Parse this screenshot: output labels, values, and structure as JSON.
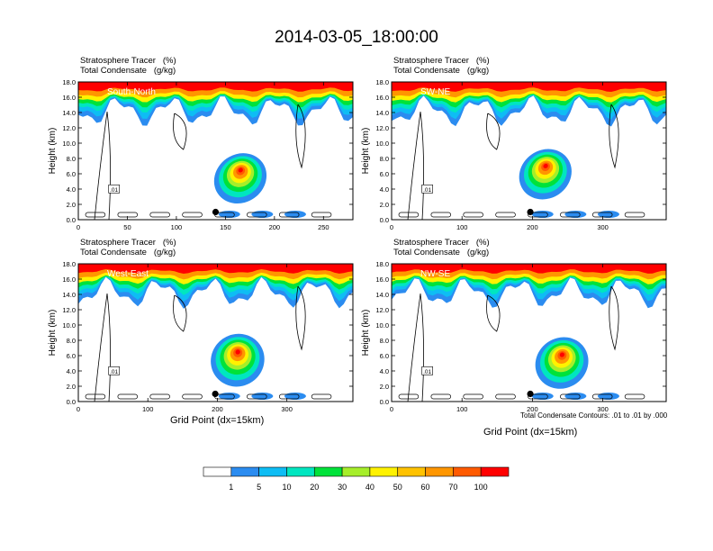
{
  "title": "2014-03-05_18:00:00",
  "panel_header": {
    "line1": "Stratosphere Tracer   (%)",
    "line2": "Total Condensate   (g/kg)"
  },
  "contour_note": "Total Condensate Contours: .01 to .01 by .000",
  "contour_label": ".01",
  "colorbar": {
    "levels": [
      1,
      5,
      10,
      20,
      30,
      40,
      50,
      60,
      70,
      100
    ],
    "colors": [
      "#ffffff",
      "#2b8cf0",
      "#0ebdf4",
      "#00e6c0",
      "#00e23a",
      "#a6ee2a",
      "#fff200",
      "#ffc200",
      "#ff9600",
      "#ff5a00",
      "#ff0000"
    ]
  },
  "chart_data": [
    {
      "type": "heatmap",
      "name": "South-North",
      "ylabel": "Height (km)",
      "xlabel": "",
      "xlim": [
        0,
        280
      ],
      "ylim": [
        0,
        18
      ],
      "xticks": [
        0,
        50,
        100,
        150,
        200,
        250
      ],
      "yticks": [
        "0.0",
        "2.0",
        "4.0",
        "6.0",
        "8.0",
        "10.0",
        "12.0",
        "14.0",
        "16.0",
        "18.0"
      ],
      "marker": {
        "x": 140,
        "y": 1.0
      }
    },
    {
      "type": "heatmap",
      "name": "SW-NE",
      "ylabel": "Height (km)",
      "xlabel": "",
      "xlim": [
        0,
        390
      ],
      "ylim": [
        0,
        18
      ],
      "xticks": [
        0,
        100,
        200,
        300
      ],
      "yticks": [
        "0.0",
        "2.0",
        "4.0",
        "6.0",
        "8.0",
        "10.0",
        "12.0",
        "14.0",
        "16.0",
        "18.0"
      ],
      "marker": {
        "x": 197,
        "y": 1.0
      }
    },
    {
      "type": "heatmap",
      "name": "West-East",
      "ylabel": "Height (km)",
      "xlabel": "Grid Point (dx=15km)",
      "xlim": [
        0,
        395
      ],
      "ylim": [
        0,
        18
      ],
      "xticks": [
        0,
        100,
        200,
        300
      ],
      "yticks": [
        "0.0",
        "2.0",
        "4.0",
        "6.0",
        "8.0",
        "10.0",
        "12.0",
        "14.0",
        "16.0",
        "18.0"
      ],
      "marker": {
        "x": 197,
        "y": 1.0
      }
    },
    {
      "type": "heatmap",
      "name": "NW-SE",
      "ylabel": "Height (km)",
      "xlabel": "Grid Point (dx=15km)",
      "xlim": [
        0,
        390
      ],
      "ylim": [
        0,
        18
      ],
      "xticks": [
        0,
        100,
        200,
        300
      ],
      "yticks": [
        "0.0",
        "2.0",
        "4.0",
        "6.0",
        "8.0",
        "10.0",
        "12.0",
        "14.0",
        "16.0",
        "18.0"
      ],
      "marker": {
        "x": 197,
        "y": 1.0
      }
    }
  ]
}
